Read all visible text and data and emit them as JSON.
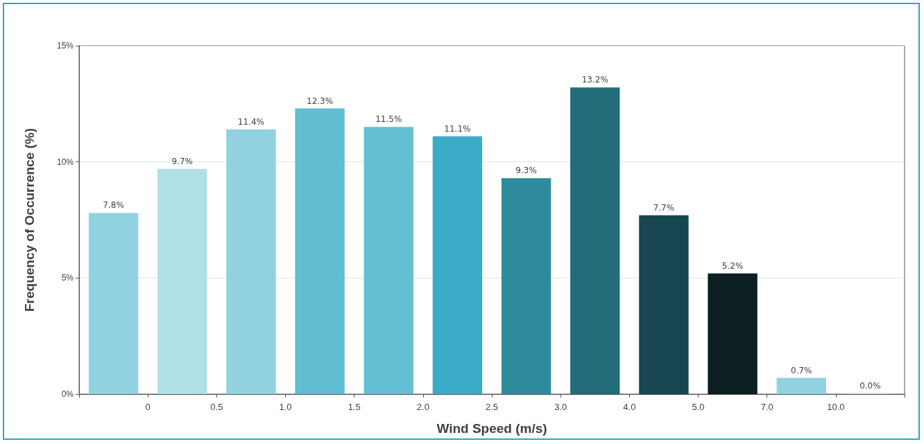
{
  "chart_data": {
    "type": "bar",
    "xlabel": "Wind Speed (m/s)",
    "ylabel": "Frequency of Occurrence (%)",
    "categories": [
      null,
      "0",
      "0.5",
      "1.0",
      "1.5",
      "2.0",
      "2.5",
      "3.0",
      "4.0",
      "5.0",
      "7.0",
      "10.0"
    ],
    "values": [
      7.8,
      9.7,
      11.4,
      12.3,
      11.5,
      11.1,
      9.3,
      13.2,
      7.7,
      5.2,
      0.7,
      0.0
    ],
    "value_labels": [
      "7.8%",
      "9.7%",
      "11.4%",
      "12.3%",
      "11.5%",
      "11.1%",
      "9.3%",
      "13.2%",
      "7.7%",
      "5.2%",
      "0.7%",
      "0.0%"
    ],
    "colors": [
      "#92d1e0",
      "#b0dfe6",
      "#92d1e0",
      "#61bdd0",
      "#63bfd1",
      "#3aacc7",
      "#2f8b9b",
      "#236c79",
      "#184650",
      "#0b1e22",
      "#92d1e0",
      "#92d1e0"
    ],
    "ylim": [
      0,
      15
    ],
    "yticks": [
      {
        "value": 0,
        "label": "0%"
      },
      {
        "value": 5,
        "label": "5%"
      },
      {
        "value": 10,
        "label": "10%"
      },
      {
        "value": 15,
        "label": "15%"
      }
    ],
    "grid": "y"
  }
}
